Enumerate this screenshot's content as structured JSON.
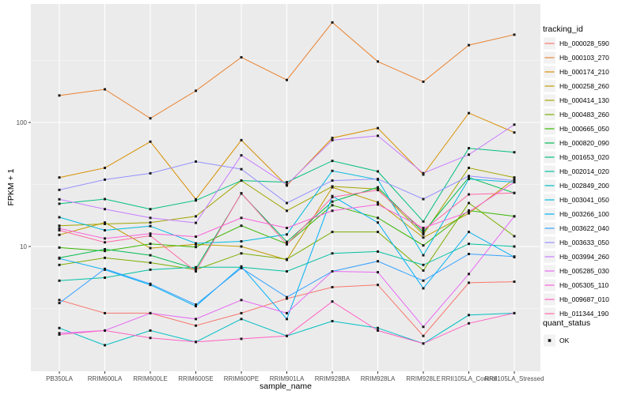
{
  "chart_data": {
    "type": "line",
    "xlabel": "sample_name",
    "ylabel": "FPKM + 1",
    "yscale": "log10",
    "ytick_labels": [
      "100",
      "10"
    ],
    "ytick_values": [
      100,
      10
    ],
    "ylim": [
      1,
      900
    ],
    "grid": "on",
    "legend_position": "right",
    "legend_title": "tracking_id",
    "legend2_title": "quant_status",
    "legend2_items": [
      "OK"
    ],
    "point_shape": "black-square",
    "panel_bg": "#EBEBEB",
    "grid_color": "#FFFFFF",
    "tick_text_color": "#4D4D4D",
    "categories": [
      "PB350LA",
      "RRIM600LA",
      "RRIM600LE",
      "RRIM600SE",
      "RRIM600PE",
      "RRIM901LA",
      "RRIM928BA",
      "RRIM928LA",
      "RRIM928LE",
      "RRII105LA_Control",
      "RRII105LA_Stressed"
    ],
    "series": [
      {
        "name": "Hb_000028_590",
        "color": "#F8766D",
        "values": [
          3.7,
          2.9,
          2.9,
          2.3,
          2.9,
          3.8,
          4.7,
          4.9,
          1.9,
          5.1,
          5.2
        ]
      },
      {
        "name": "Hb_000103_270",
        "color": "#EA8331",
        "values": [
          165,
          185,
          108,
          180,
          335,
          220,
          640,
          310,
          213,
          420,
          510
        ]
      },
      {
        "name": "Hb_000174_210",
        "color": "#D89000",
        "values": [
          36,
          43,
          70,
          24,
          72,
          31,
          75,
          90,
          38,
          119,
          83
        ]
      },
      {
        "name": "Hb_000258_260",
        "color": "#C09B00",
        "values": [
          12.4,
          15.6,
          9.7,
          10.4,
          10.0,
          7.8,
          30,
          22.7,
          11.8,
          18.5,
          35
        ]
      },
      {
        "name": "Hb_000414_130",
        "color": "#A3A500",
        "values": [
          14.7,
          15.2,
          15.6,
          17.5,
          34,
          19.4,
          30.5,
          29,
          12.5,
          43,
          36
        ]
      },
      {
        "name": "Hb_000483_260",
        "color": "#7CAE00",
        "values": [
          7.1,
          8.1,
          7.4,
          6.5,
          8.8,
          7.9,
          13.1,
          13.1,
          6.4,
          22.4,
          12.1
        ]
      },
      {
        "name": "Hb_000665_050",
        "color": "#39B600",
        "values": [
          9.8,
          9.2,
          10.5,
          9.9,
          14.7,
          10.5,
          21.5,
          17.0,
          10.2,
          19.5,
          17.5
        ]
      },
      {
        "name": "Hb_000820_090",
        "color": "#00BB4E",
        "values": [
          8.1,
          9.5,
          8.5,
          6.6,
          26.7,
          10.9,
          23,
          30,
          13,
          36,
          27
        ]
      },
      {
        "name": "Hb_001653_020",
        "color": "#00BF7D",
        "values": [
          22.1,
          24.1,
          20,
          23.5,
          34,
          33,
          49,
          40.3,
          15.9,
          62,
          57.5
        ]
      },
      {
        "name": "Hb_002014_020",
        "color": "#00C1A3",
        "values": [
          5.3,
          5.6,
          6.5,
          6.8,
          6.8,
          6.3,
          8.8,
          9.1,
          7.1,
          10.5,
          10
        ]
      },
      {
        "name": "Hb_002849_200",
        "color": "#00BFC4",
        "values": [
          2.2,
          1.6,
          2.1,
          1.7,
          2.6,
          1.9,
          2.5,
          2.2,
          1.65,
          2.8,
          2.9
        ]
      },
      {
        "name": "Hb_003041_050",
        "color": "#00BAE0",
        "values": [
          17.2,
          13.5,
          14.6,
          10.6,
          11.0,
          12.5,
          40.7,
          34.6,
          8.5,
          35,
          33
        ]
      },
      {
        "name": "Hb_003266_100",
        "color": "#00B0F6",
        "values": [
          8.0,
          6.5,
          4.9,
          3.3,
          6.9,
          2.6,
          25.5,
          15.6,
          4.6,
          13.1,
          8.2
        ]
      },
      {
        "name": "Hb_003622_040",
        "color": "#35A2FF",
        "values": [
          3.5,
          6.6,
          5.0,
          3.4,
          6.7,
          3.9,
          6.3,
          7.6,
          5.3,
          8.7,
          8.3
        ]
      },
      {
        "name": "Hb_003633_050",
        "color": "#9590FF",
        "values": [
          28.6,
          34.6,
          38.9,
          48.4,
          42,
          22.4,
          34,
          35,
          24.1,
          37,
          34
        ]
      },
      {
        "name": "Hb_003994_260",
        "color": "#C77CFF",
        "values": [
          24,
          20,
          17,
          15.5,
          54.3,
          31.5,
          72,
          78,
          39,
          55,
          96
        ]
      },
      {
        "name": "Hb_005285_030",
        "color": "#E76BF3",
        "values": [
          2.0,
          2.1,
          2.9,
          2.6,
          3.7,
          2.9,
          6.3,
          6.2,
          2.25,
          6.0,
          17.5
        ]
      },
      {
        "name": "Hb_005305_110",
        "color": "#FA62DB",
        "values": [
          14.0,
          11.6,
          12.7,
          12.0,
          17.0,
          14.1,
          19.4,
          21.8,
          14.1,
          19.0,
          33
        ]
      },
      {
        "name": "Hb_009687_010",
        "color": "#FF61C3",
        "values": [
          1.95,
          2.1,
          1.83,
          1.7,
          1.8,
          1.9,
          3.6,
          2.1,
          1.65,
          2.4,
          2.9
        ]
      },
      {
        "name": "Hb_011344_190",
        "color": "#FF67A4",
        "values": [
          13.5,
          10.8,
          12.2,
          6.3,
          26.9,
          10.4,
          25,
          28.5,
          13.5,
          26.3,
          27
        ]
      }
    ]
  }
}
